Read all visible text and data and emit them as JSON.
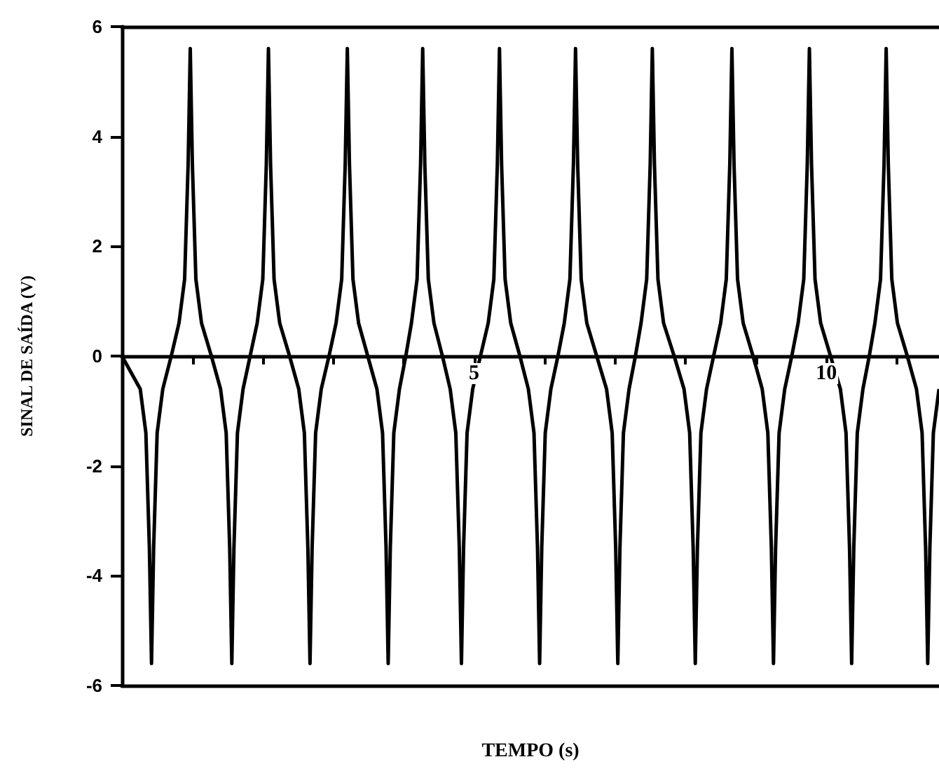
{
  "chart_data": {
    "type": "line",
    "xlabel": "TEMPO (s)",
    "ylabel": "SINAL DE SAÍDA (V)",
    "xlim": [
      0,
      11.6
    ],
    "ylim": [
      -6,
      6
    ],
    "xticks": [
      {
        "value": 1,
        "label": null
      },
      {
        "value": 2,
        "label": null
      },
      {
        "value": 3,
        "label": null
      },
      {
        "value": 4,
        "label": null
      },
      5,
      {
        "value": 6,
        "label": null
      },
      {
        "value": 7,
        "label": null
      },
      {
        "value": 8,
        "label": null
      },
      {
        "value": 9,
        "label": null
      },
      10,
      {
        "value": 11,
        "label": null
      }
    ],
    "yticks": [
      -6,
      -4,
      -2,
      0,
      2,
      4,
      6
    ],
    "grid": false,
    "marker": "none",
    "line_style": "solid",
    "series": [
      {
        "color": "#000000",
        "x": [
          0,
          0.26,
          0.34,
          0.39,
          0.42,
          0.45,
          0.5,
          0.58,
          0.7,
          0.81,
          0.89,
          0.94,
          0.97,
          1.0,
          1.05,
          1.13,
          1.27,
          1.4,
          1.48,
          1.53,
          1.56,
          1.59,
          1.64,
          1.72,
          1.82,
          1.92,
          2.0,
          2.05,
          2.08,
          2.11,
          2.16,
          2.24,
          2.38,
          2.51,
          2.59,
          2.64,
          2.67,
          2.7,
          2.75,
          2.83,
          2.94,
          3.04,
          3.12,
          3.17,
          3.2,
          3.23,
          3.28,
          3.36,
          3.49,
          3.62,
          3.7,
          3.75,
          3.78,
          3.81,
          3.86,
          3.94,
          4.03,
          4.11,
          4.19,
          4.24,
          4.27,
          4.3,
          4.35,
          4.43,
          4.55,
          4.66,
          4.74,
          4.79,
          4.82,
          4.85,
          4.9,
          4.98,
          5.09,
          5.2,
          5.28,
          5.33,
          5.36,
          5.39,
          5.44,
          5.52,
          5.65,
          5.77,
          5.85,
          5.9,
          5.93,
          5.96,
          6.01,
          6.09,
          6.19,
          6.28,
          6.36,
          6.41,
          6.44,
          6.47,
          6.52,
          6.6,
          6.74,
          6.88,
          6.96,
          7.01,
          7.04,
          7.07,
          7.12,
          7.2,
          7.29,
          7.37,
          7.45,
          7.5,
          7.53,
          7.56,
          7.61,
          7.69,
          7.84,
          7.98,
          8.06,
          8.11,
          8.14,
          8.17,
          8.22,
          8.3,
          8.4,
          8.5,
          8.58,
          8.63,
          8.66,
          8.69,
          8.74,
          8.82,
          8.96,
          9.09,
          9.17,
          9.22,
          9.25,
          9.28,
          9.33,
          9.41,
          9.51,
          9.6,
          9.68,
          9.73,
          9.76,
          9.79,
          9.84,
          9.92,
          10.06,
          10.2,
          10.28,
          10.33,
          10.36,
          10.39,
          10.44,
          10.52,
          10.61,
          10.69,
          10.77,
          10.82,
          10.85,
          10.88,
          10.93,
          11.01,
          11.15,
          11.28,
          11.36,
          11.41,
          11.44,
          11.47,
          11.52,
          11.6
        ],
        "values": [
          0,
          -0.6,
          -1.4,
          -3.5,
          -5.6,
          -3.5,
          -1.4,
          -0.6,
          0,
          0.6,
          1.4,
          3.5,
          5.6,
          3.5,
          1.4,
          0.6,
          0,
          -0.6,
          -1.4,
          -3.5,
          -5.6,
          -3.5,
          -1.4,
          -0.6,
          0,
          0.6,
          1.4,
          3.5,
          5.6,
          3.5,
          1.4,
          0.6,
          0,
          -0.6,
          -1.4,
          -3.5,
          -5.6,
          -3.5,
          -1.4,
          -0.6,
          0,
          0.6,
          1.4,
          3.5,
          5.6,
          3.5,
          1.4,
          0.6,
          0,
          -0.6,
          -1.4,
          -3.5,
          -5.6,
          -3.5,
          -1.4,
          -0.6,
          0,
          0.6,
          1.4,
          3.5,
          5.6,
          3.5,
          1.4,
          0.6,
          0,
          -0.6,
          -1.4,
          -3.5,
          -5.6,
          -3.5,
          -1.4,
          -0.6,
          0,
          0.6,
          1.4,
          3.5,
          5.6,
          3.5,
          1.4,
          0.6,
          0,
          -0.6,
          -1.4,
          -3.5,
          -5.6,
          -3.5,
          -1.4,
          -0.6,
          0,
          0.6,
          1.4,
          3.5,
          5.6,
          3.5,
          1.4,
          0.6,
          0,
          -0.6,
          -1.4,
          -3.5,
          -5.6,
          -3.5,
          -1.4,
          -0.6,
          0,
          0.6,
          1.4,
          3.5,
          5.6,
          3.5,
          1.4,
          0.6,
          0,
          -0.6,
          -1.4,
          -3.5,
          -5.6,
          -3.5,
          -1.4,
          -0.6,
          0,
          0.6,
          1.4,
          3.5,
          5.6,
          3.5,
          1.4,
          0.6,
          0,
          -0.6,
          -1.4,
          -3.5,
          -5.6,
          -3.5,
          -1.4,
          -0.6,
          0,
          0.6,
          1.4,
          3.5,
          5.6,
          3.5,
          1.4,
          0.6,
          0,
          -0.6,
          -1.4,
          -3.5,
          -5.6,
          -3.5,
          -1.4,
          -0.6,
          0,
          0.6,
          1.4,
          3.5,
          5.6,
          3.5,
          1.4,
          0.6,
          0,
          -0.6,
          -1.4,
          -3.5,
          -5.6,
          -3.5,
          -1.4,
          -0.6
        ]
      }
    ]
  }
}
